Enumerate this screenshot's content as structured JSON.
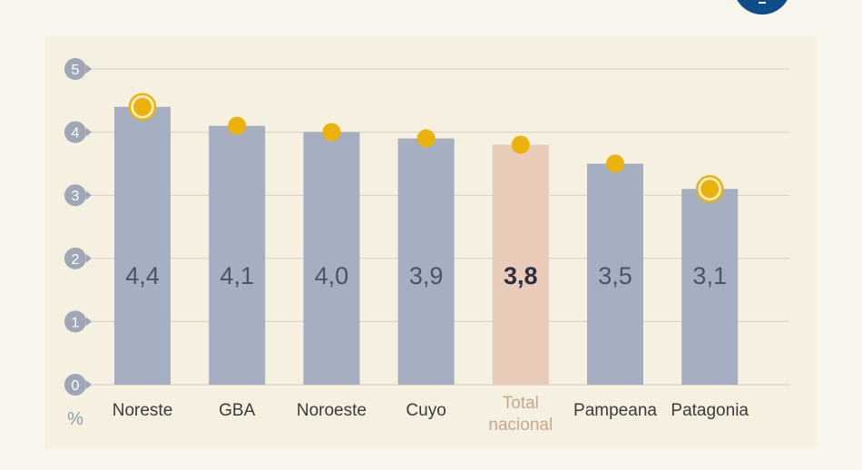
{
  "chart_data": {
    "type": "bar",
    "categories": [
      "Noreste",
      "GBA",
      "Noroeste",
      "Cuyo",
      "Total nacional",
      "Pampeana",
      "Patagonia"
    ],
    "category_lines": [
      [
        "Noreste"
      ],
      [
        "GBA"
      ],
      [
        "Noroeste"
      ],
      [
        "Cuyo"
      ],
      [
        "Total",
        "nacional"
      ],
      [
        "Pampeana"
      ],
      [
        "Patagonia"
      ]
    ],
    "values": [
      4.4,
      4.1,
      4.0,
      3.9,
      3.8,
      3.5,
      3.1
    ],
    "value_labels": [
      "4,4",
      "4,1",
      "4,0",
      "3,9",
      "3,8",
      "3,5",
      "3,1"
    ],
    "marker_values": [
      4.4,
      4.1,
      4.0,
      3.9,
      3.8,
      3.5,
      3.1
    ],
    "ringed_markers": [
      0,
      6
    ],
    "highlight_index": 4,
    "ylim": [
      0,
      5
    ],
    "yticks": [
      "0",
      "1",
      "2",
      "3",
      "4",
      "5"
    ],
    "ylabel": "%",
    "xlabel": "",
    "title": "",
    "grid": true,
    "colors": {
      "bar": "#a5afc1",
      "bar_highlight": "#e8cbb9",
      "marker": "#ebb20c",
      "gridline": "#d3cfc5",
      "tick_bubble": "#9fa6b6"
    }
  }
}
